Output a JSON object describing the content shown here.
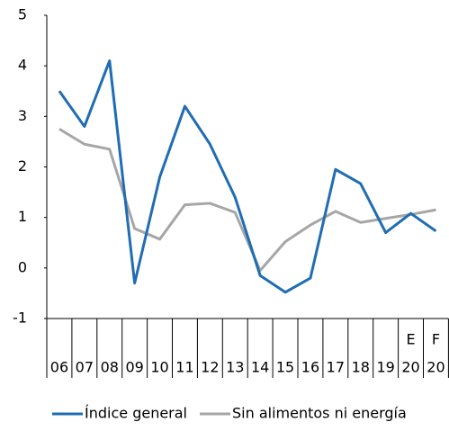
{
  "chart_data": {
    "type": "line",
    "categories": [
      "06",
      "07",
      "08",
      "09",
      "10",
      "11",
      "12",
      "13",
      "14",
      "15",
      "16",
      "17",
      "18",
      "19",
      "20",
      "20"
    ],
    "period_marks": [
      "E",
      "F"
    ],
    "series": [
      {
        "name": "Índice general",
        "color": "#1f6db3",
        "values": [
          3.5,
          2.8,
          4.1,
          -0.3,
          1.8,
          3.2,
          2.45,
          1.4,
          -0.15,
          -0.48,
          -0.2,
          1.95,
          1.67,
          0.7,
          1.08,
          0.73
        ]
      },
      {
        "name": "Sin alimentos ni energía",
        "color": "#a6a6a6",
        "values": [
          2.75,
          2.45,
          2.35,
          0.78,
          0.57,
          1.25,
          1.28,
          1.1,
          -0.05,
          0.52,
          0.85,
          1.12,
          0.9,
          0.98,
          1.06,
          1.15
        ]
      }
    ],
    "ylim": [
      -1,
      5
    ],
    "yticks": [
      -1,
      0,
      1,
      2,
      3,
      4,
      5
    ],
    "grid": false
  }
}
